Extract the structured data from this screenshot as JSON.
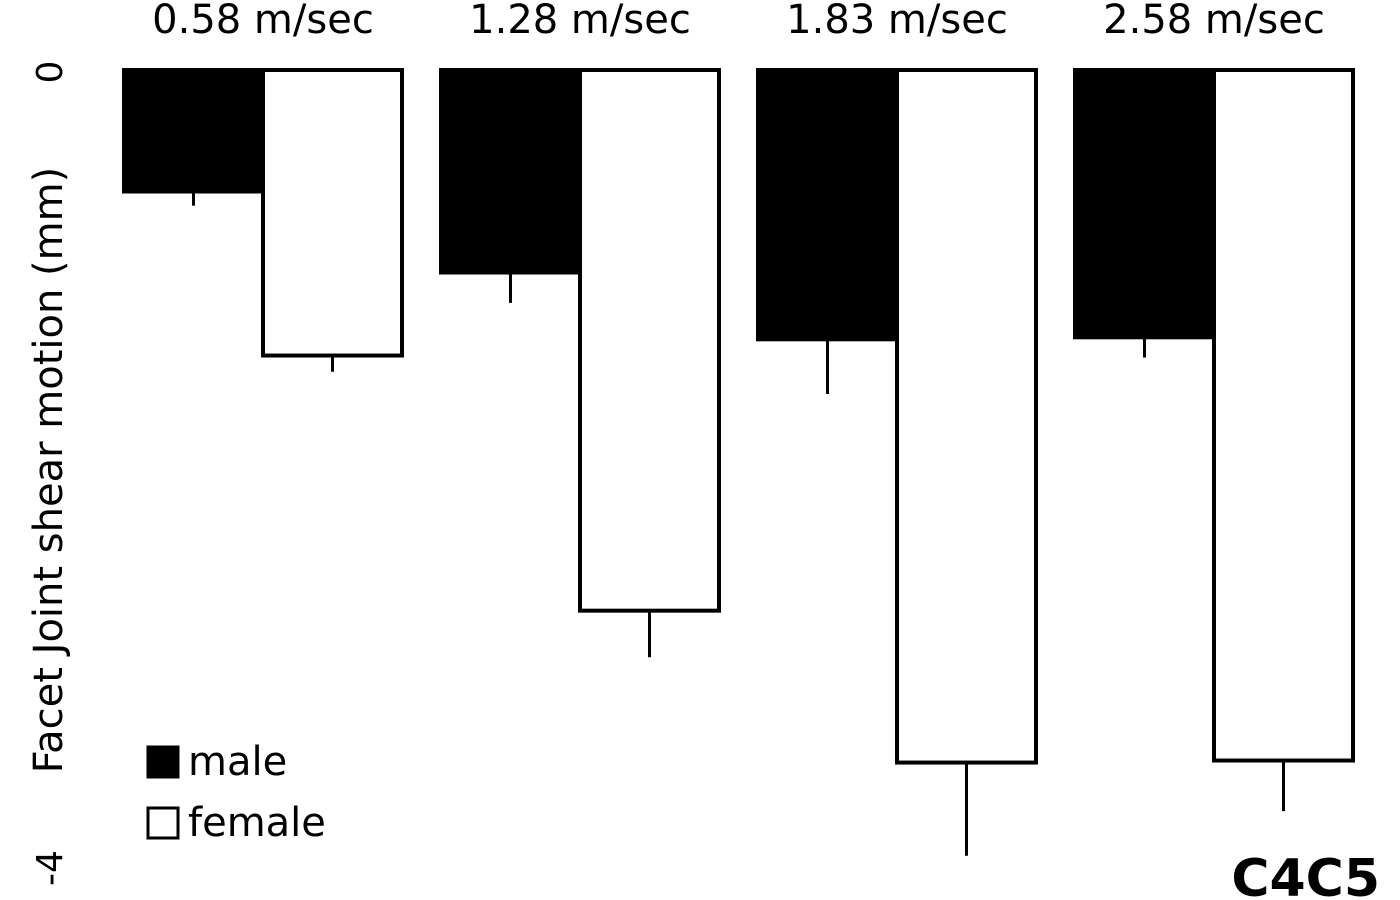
{
  "chart_data": {
    "type": "bar",
    "title": "",
    "panel_label": "C4C5",
    "ylabel": "Facet Joint shear motion (mm)",
    "ylim": [
      -4,
      0
    ],
    "yticks": [
      "0",
      "-4"
    ],
    "categories": [
      "0.58 m/sec",
      "1.28 m/sec",
      "1.83 m/sec",
      "2.58 m/sec"
    ],
    "series": [
      {
        "name": "male",
        "color": "#000000",
        "values": [
          -0.6,
          -1.0,
          -1.33,
          -1.32
        ],
        "errors": [
          0.07,
          0.15,
          0.27,
          0.1
        ]
      },
      {
        "name": "female",
        "color": "#ffffff",
        "values": [
          -1.41,
          -2.67,
          -3.42,
          -3.41
        ],
        "errors": [
          0.08,
          0.23,
          0.46,
          0.25
        ]
      }
    ],
    "legend": "bottom-left",
    "grid": false
  }
}
